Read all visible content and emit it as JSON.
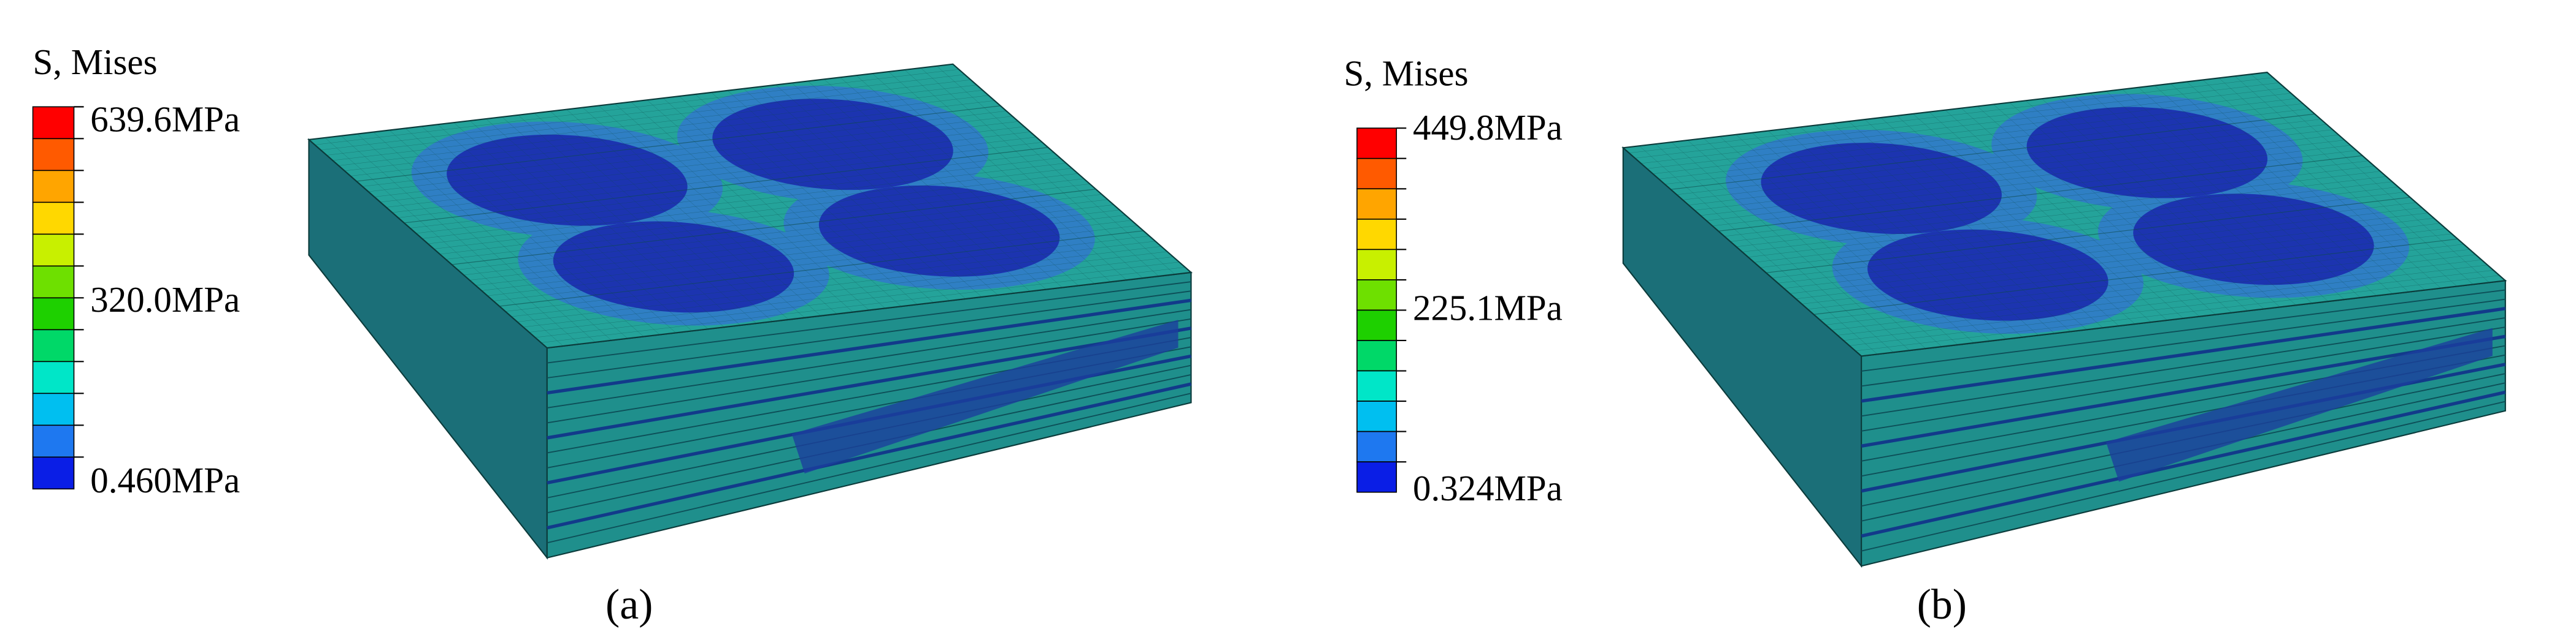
{
  "panels": [
    {
      "legend_title": "S, Mises",
      "legend_labels": [
        "639.6MPa",
        "320.0MPa",
        "0.460MPa"
      ],
      "caption": "(a)"
    },
    {
      "legend_title": "S, Mises",
      "legend_labels": [
        "449.8MPa",
        "225.1MPa",
        "0.324MPa"
      ],
      "caption": "(b)"
    }
  ]
}
